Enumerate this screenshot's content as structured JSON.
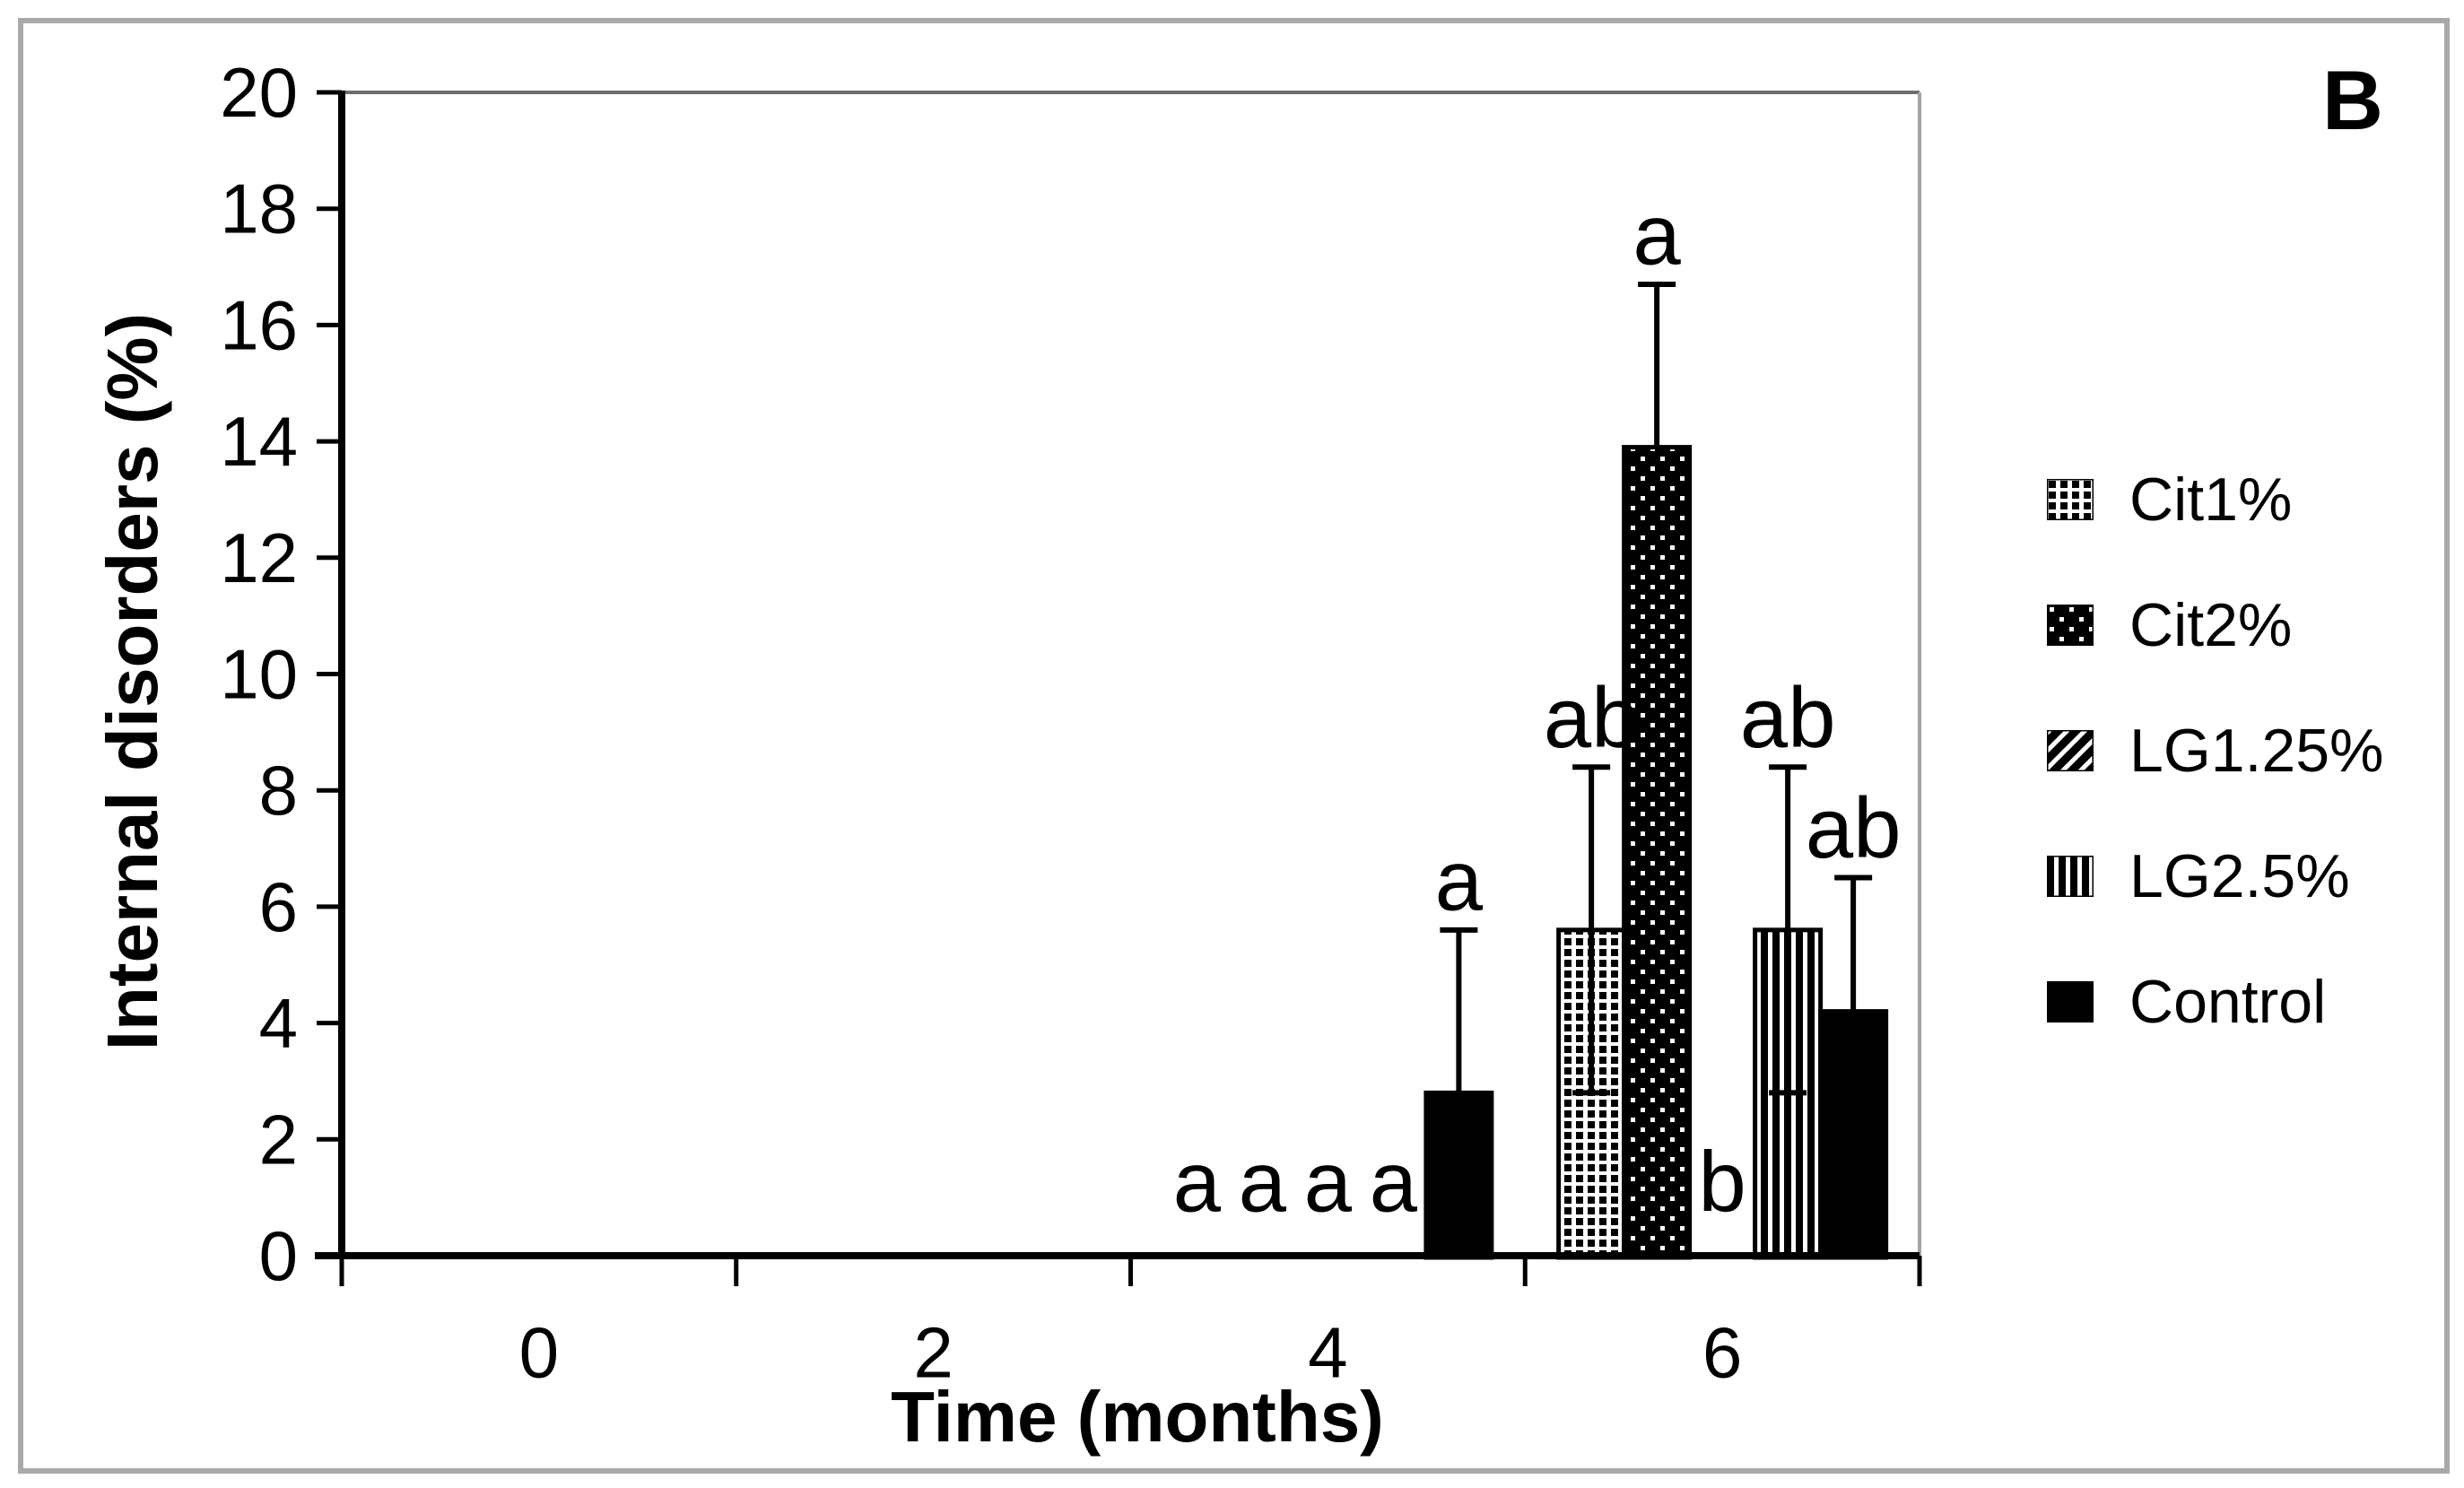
{
  "figure": {
    "panel_label": "B",
    "background": "#ffffff",
    "border_color": "#a9a9a9",
    "ink_color": "#000000"
  },
  "chart_data": {
    "type": "bar",
    "title": "",
    "xlabel": "Time (months)",
    "ylabel": "Internal disorders (%)",
    "categories": [
      "0",
      "2",
      "4",
      "6"
    ],
    "ylim": [
      0,
      20
    ],
    "ytick_step": 2,
    "y_tick_labels": [
      "0",
      "2",
      "4",
      "6",
      "8",
      "10",
      "12",
      "14",
      "16",
      "18",
      "20"
    ],
    "grid": false,
    "legend_position": "right",
    "series": [
      {
        "name": "Cit1%",
        "pattern": "dot-grid",
        "values": [
          0,
          0,
          0,
          5.6
        ],
        "errors": [
          null,
          null,
          null,
          2.8
        ],
        "sig_letters": [
          null,
          null,
          "a",
          "ab"
        ]
      },
      {
        "name": "Cit2%",
        "pattern": "sparse-dots",
        "values": [
          0,
          0,
          0,
          13.9
        ],
        "errors": [
          null,
          null,
          null,
          2.8
        ],
        "sig_letters": [
          null,
          null,
          "a",
          "a"
        ]
      },
      {
        "name": "LG1.25%",
        "pattern": "diagonal-hatch",
        "values": [
          0,
          0,
          0,
          0
        ],
        "errors": [
          null,
          null,
          null,
          null
        ],
        "sig_letters": [
          null,
          null,
          "a",
          "b"
        ]
      },
      {
        "name": "LG2.5%",
        "pattern": "vertical-stripes",
        "values": [
          0,
          0,
          0,
          5.6
        ],
        "errors": [
          null,
          null,
          null,
          2.8
        ],
        "sig_letters": [
          null,
          null,
          "a",
          "ab"
        ]
      },
      {
        "name": "Control",
        "pattern": "solid",
        "values": [
          0,
          0,
          2.8,
          4.2
        ],
        "errors": [
          null,
          null,
          2.8,
          2.3
        ],
        "sig_letters": [
          null,
          null,
          "a",
          "ab"
        ]
      }
    ]
  }
}
